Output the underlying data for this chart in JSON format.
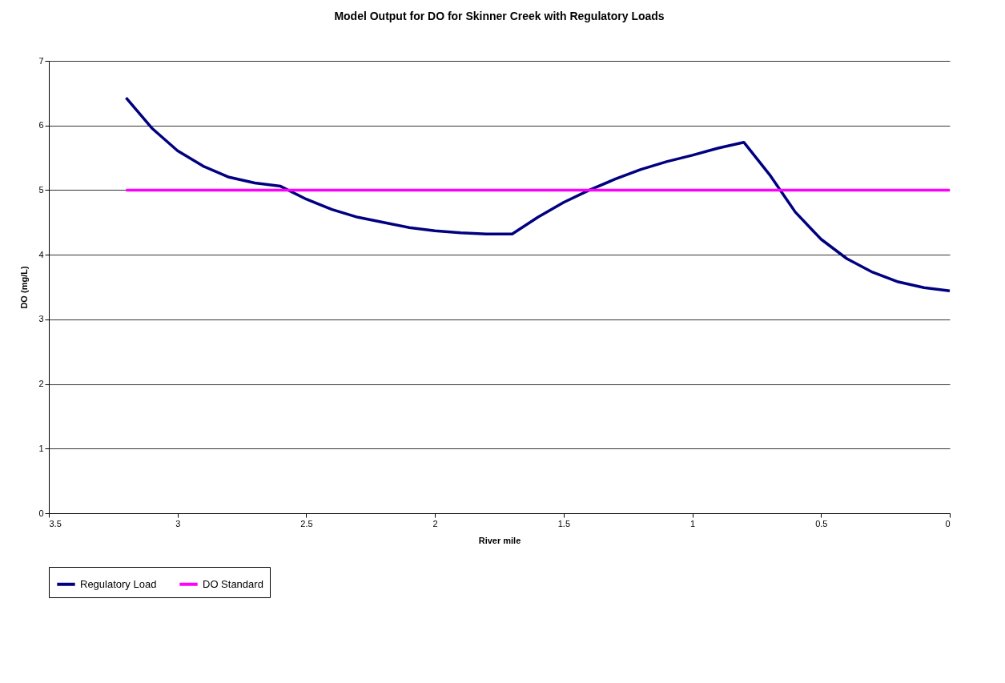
{
  "chart_data": {
    "type": "line",
    "title": "Model Output for DO for Skinner Creek with Regulatory Loads",
    "xlabel": "River mile",
    "ylabel": "DO (mg/L)",
    "xlim": [
      3.5,
      0
    ],
    "xticks": [
      3.5,
      3,
      2.5,
      2,
      1.5,
      1,
      0.5,
      0
    ],
    "ylim": [
      0,
      7
    ],
    "yticks": [
      0,
      1,
      2,
      3,
      4,
      5,
      6,
      7
    ],
    "grid": "y",
    "legend": "bottom",
    "marker": "none",
    "line_style": "solid",
    "series": [
      {
        "name": "Regulatory Load",
        "color": "#000080",
        "x": [
          3.2,
          3.1,
          3.0,
          2.9,
          2.8,
          2.7,
          2.6,
          2.5,
          2.4,
          2.3,
          2.2,
          2.1,
          2.0,
          1.9,
          1.8,
          1.7,
          1.6,
          1.5,
          1.4,
          1.3,
          1.2,
          1.1,
          1.0,
          0.9,
          0.8,
          0.7,
          0.6,
          0.5,
          0.4,
          0.3,
          0.2,
          0.1,
          0.0
        ],
        "values": [
          6.43,
          5.96,
          5.61,
          5.37,
          5.2,
          5.11,
          5.06,
          4.86,
          4.7,
          4.58,
          4.5,
          4.42,
          4.37,
          4.34,
          4.32,
          4.32,
          4.58,
          4.81,
          5.0,
          5.17,
          5.32,
          5.44,
          5.54,
          5.65,
          5.74,
          5.24,
          4.66,
          4.24,
          3.94,
          3.73,
          3.58,
          3.49,
          3.44
        ]
      },
      {
        "name": "DO Standard",
        "color": "#ff00ff",
        "x": [
          3.2,
          0
        ],
        "values": [
          5,
          5
        ]
      }
    ]
  }
}
